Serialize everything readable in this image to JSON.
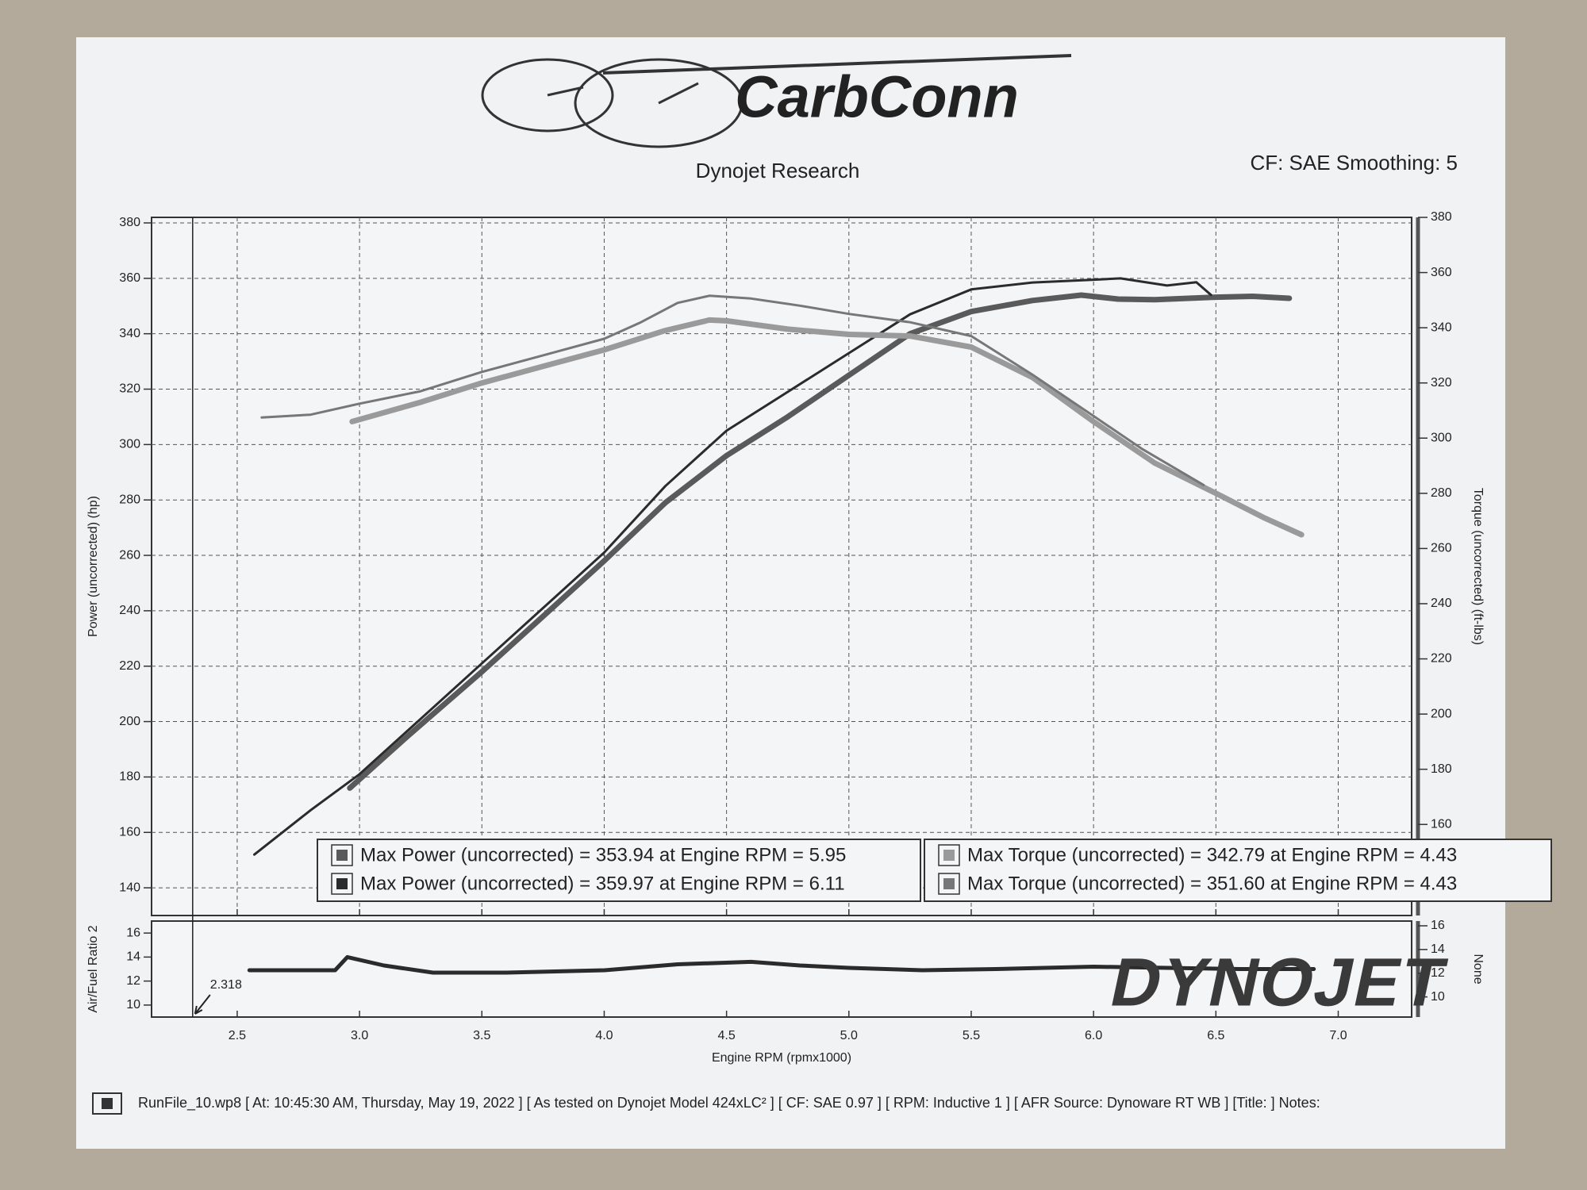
{
  "logo": "CarbConn",
  "title": "Dynojet Research",
  "settings_text": "CF: SAE Smoothing: 5",
  "watermark": "DYNOJET",
  "footer": "RunFile_10.wp8 [ At: 10:45:30 AM, Thursday, May 19, 2022 ] [ As tested on Dynojet Model 424xLC² ] [ CF: SAE 0.97 ] [ RPM: Inductive 1 ] [ AFR Source: Dynoware RT WB ] [Title: ]  Notes:",
  "chart_data": [
    {
      "type": "line",
      "ylabel": "Power (uncorrected) (hp)",
      "y2label": "Torque (uncorrected) (ft-lbs)",
      "xlim": [
        2.15,
        7.3
      ],
      "ylim": [
        130,
        382
      ],
      "yticks": [
        140,
        160,
        180,
        200,
        220,
        240,
        260,
        280,
        300,
        320,
        340,
        360,
        380
      ],
      "y2lim": [
        127,
        380
      ],
      "y2ticks": [
        160,
        180,
        200,
        220,
        240,
        260,
        280,
        300,
        320,
        340,
        360,
        380
      ],
      "grid": true,
      "series": [
        {
          "name": "Max Power (uncorrected) = 353.94 at Engine RPM = 5.95",
          "color": "#5a5a5a",
          "x": [
            2.96,
            3.2,
            3.5,
            3.75,
            4.0,
            4.25,
            4.5,
            4.75,
            5.0,
            5.25,
            5.5,
            5.75,
            5.95,
            6.1,
            6.25,
            6.5,
            6.65,
            6.8
          ],
          "values": [
            176,
            195,
            218,
            238,
            258,
            279,
            296,
            310,
            325,
            340,
            348,
            352,
            353.94,
            352.5,
            352.3,
            353.2,
            353.5,
            352.8
          ]
        },
        {
          "name": "Max Power (uncorrected) = 359.97 at Engine RPM = 6.11",
          "color": "#2b2b2b",
          "x": [
            2.57,
            2.8,
            3.0,
            3.25,
            3.5,
            3.75,
            4.0,
            4.25,
            4.5,
            4.75,
            5.0,
            5.25,
            5.5,
            5.75,
            6.0,
            6.11,
            6.3,
            6.42,
            6.48
          ],
          "values": [
            152,
            168,
            181,
            201,
            221,
            241,
            261,
            285,
            305,
            319,
            333,
            347,
            356,
            358.5,
            359.5,
            359.97,
            357.4,
            358.6,
            354
          ]
        },
        {
          "name": "Max Torque (uncorrected) = 342.79 at Engine RPM = 4.43",
          "color": "#9a9a9a",
          "axis": "y2",
          "x": [
            2.97,
            3.25,
            3.5,
            3.75,
            4.0,
            4.25,
            4.43,
            4.5,
            4.75,
            5.0,
            5.25,
            5.5,
            5.75,
            6.0,
            6.25,
            6.5,
            6.7,
            6.85
          ],
          "values": [
            306,
            313,
            320,
            326,
            332,
            339,
            342.79,
            342.5,
            339.5,
            337.6,
            337,
            333,
            322,
            306,
            291,
            280,
            271,
            265
          ]
        },
        {
          "name": "Max Torque (uncorrected) = 351.60 at Engine RPM = 4.43",
          "color": "#777777",
          "axis": "y2",
          "x": [
            2.6,
            2.8,
            3.0,
            3.25,
            3.5,
            3.75,
            4.0,
            4.15,
            4.3,
            4.43,
            4.6,
            4.8,
            5.0,
            5.25,
            5.5,
            5.75,
            6.0,
            6.2,
            6.45
          ],
          "values": [
            307.5,
            308.5,
            312.5,
            317,
            324,
            330,
            336,
            342,
            349,
            351.6,
            350.6,
            348,
            345,
            342,
            337,
            323,
            308,
            296,
            283
          ]
        }
      ]
    },
    {
      "type": "line",
      "xlabel": "Engine RPM (rpmx1000)",
      "ylabel": "Air/Fuel Ratio 2",
      "y2label": "None",
      "xlim": [
        2.15,
        7.3
      ],
      "xticks": [
        {
          "value": 2.5,
          "label": "2.5"
        },
        {
          "value": 3.0,
          "label": "3.0"
        },
        {
          "value": 3.5,
          "label": "3.5"
        },
        {
          "value": 4.0,
          "label": "4.0"
        },
        {
          "value": 4.5,
          "label": "4.5"
        },
        {
          "value": 5.0,
          "label": "5.0"
        },
        {
          "value": 5.5,
          "label": "5.5"
        },
        {
          "value": 6.0,
          "label": "6.0"
        },
        {
          "value": 6.5,
          "label": "6.5"
        },
        {
          "value": 7.0,
          "label": "7.0"
        }
      ],
      "ylim": [
        9,
        17
      ],
      "yticks": [
        10,
        12,
        14,
        16
      ],
      "y2lim": [
        8.3,
        16.4
      ],
      "y2ticks": [
        10,
        12,
        14,
        16
      ],
      "cursor": 2.318,
      "series": [
        {
          "color": "#2b2b2b",
          "x": [
            2.55,
            2.75,
            2.9,
            2.95,
            3.1,
            3.3,
            3.6,
            4.0,
            4.3,
            4.6,
            4.8,
            5.0,
            5.3,
            5.6,
            6.0,
            6.3,
            6.6,
            6.9
          ],
          "values": [
            12.9,
            12.9,
            12.9,
            14.0,
            13.3,
            12.7,
            12.7,
            12.9,
            13.4,
            13.6,
            13.3,
            13.1,
            12.9,
            13.0,
            13.2,
            13.1,
            13.0,
            13.0
          ]
        }
      ]
    }
  ]
}
